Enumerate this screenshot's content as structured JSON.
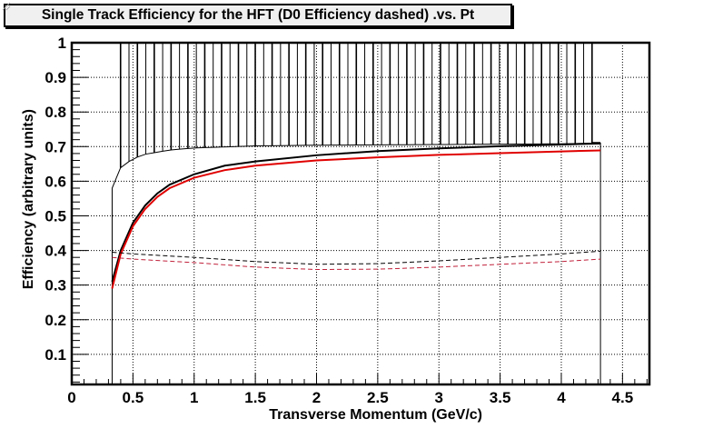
{
  "chart_data": {
    "type": "line",
    "title": "Single Track Efficiency for the HFT (D0 Efficiency dashed) .vs. Pt",
    "xlabel": "Transverse Momentum (GeV/c)",
    "ylabel": "Efficiency (arbitrary units)",
    "xlim": [
      0,
      4.72
    ],
    "ylim": [
      0.013,
      1
    ],
    "grid": true,
    "x_ticks": [
      0,
      0.5,
      1,
      1.5,
      2,
      2.5,
      3,
      3.5,
      4,
      4.5
    ],
    "x_tick_labels": [
      "0",
      "0.5",
      "1",
      "1.5",
      "2",
      "2.5",
      "3",
      "3.5",
      "4",
      "4.5"
    ],
    "y_ticks": [
      0.1,
      0.2,
      0.3,
      0.4,
      0.5,
      0.6,
      0.7,
      0.8,
      0.9,
      1
    ],
    "y_tick_labels": [
      "0.1",
      "0.2",
      "0.3",
      "0.4",
      "0.5",
      "0.6",
      "0.7",
      "0.8",
      "0.9",
      "1"
    ],
    "colors": {
      "black": "#000000",
      "red": "#e00000",
      "red_dashed": "#c0203a"
    },
    "series": [
      {
        "name": "single-track-efficiency-black",
        "style": "solid",
        "color": "#000000",
        "x": [
          0.33,
          0.4,
          0.5,
          0.6,
          0.7,
          0.8,
          1.0,
          1.25,
          1.5,
          2.0,
          2.5,
          3.0,
          3.5,
          4.0,
          4.32
        ],
        "y": [
          0.31,
          0.4,
          0.48,
          0.53,
          0.565,
          0.59,
          0.62,
          0.645,
          0.657,
          0.675,
          0.687,
          0.695,
          0.701,
          0.706,
          0.709
        ]
      },
      {
        "name": "single-track-efficiency-red",
        "style": "solid",
        "color": "#e00000",
        "x": [
          0.33,
          0.4,
          0.5,
          0.6,
          0.7,
          0.8,
          1.0,
          1.25,
          1.5,
          2.0,
          2.5,
          3.0,
          3.5,
          4.0,
          4.32
        ],
        "y": [
          0.29,
          0.39,
          0.47,
          0.52,
          0.555,
          0.58,
          0.61,
          0.632,
          0.645,
          0.66,
          0.669,
          0.676,
          0.681,
          0.686,
          0.689
        ]
      },
      {
        "name": "d0-efficiency-black-dashed",
        "style": "dashed",
        "color": "#000000",
        "x": [
          0.33,
          0.5,
          1.0,
          1.5,
          2.0,
          2.5,
          3.0,
          3.5,
          4.0,
          4.32
        ],
        "y": [
          0.395,
          0.39,
          0.38,
          0.368,
          0.36,
          0.362,
          0.37,
          0.38,
          0.39,
          0.398
        ]
      },
      {
        "name": "d0-efficiency-red-dashed",
        "style": "dashed",
        "color": "#c0203a",
        "x": [
          0.33,
          0.5,
          1.0,
          1.5,
          2.0,
          2.5,
          3.0,
          3.5,
          4.0,
          4.32
        ],
        "y": [
          0.38,
          0.375,
          0.365,
          0.352,
          0.345,
          0.346,
          0.352,
          0.36,
          0.368,
          0.375
        ]
      },
      {
        "name": "error-band-upper-envelope",
        "style": "histogram-bars",
        "color": "#000000",
        "x": [
          0.33,
          0.36,
          0.4,
          0.5,
          0.6,
          0.8,
          1.0,
          1.5,
          2.0,
          2.5,
          3.0,
          3.5,
          4.0,
          4.32
        ],
        "y": [
          0.58,
          0.6,
          0.64,
          0.665,
          0.678,
          0.69,
          0.696,
          0.702,
          0.704,
          0.705,
          0.706,
          0.707,
          0.708,
          0.71
        ],
        "bar_top": 1
      }
    ]
  }
}
